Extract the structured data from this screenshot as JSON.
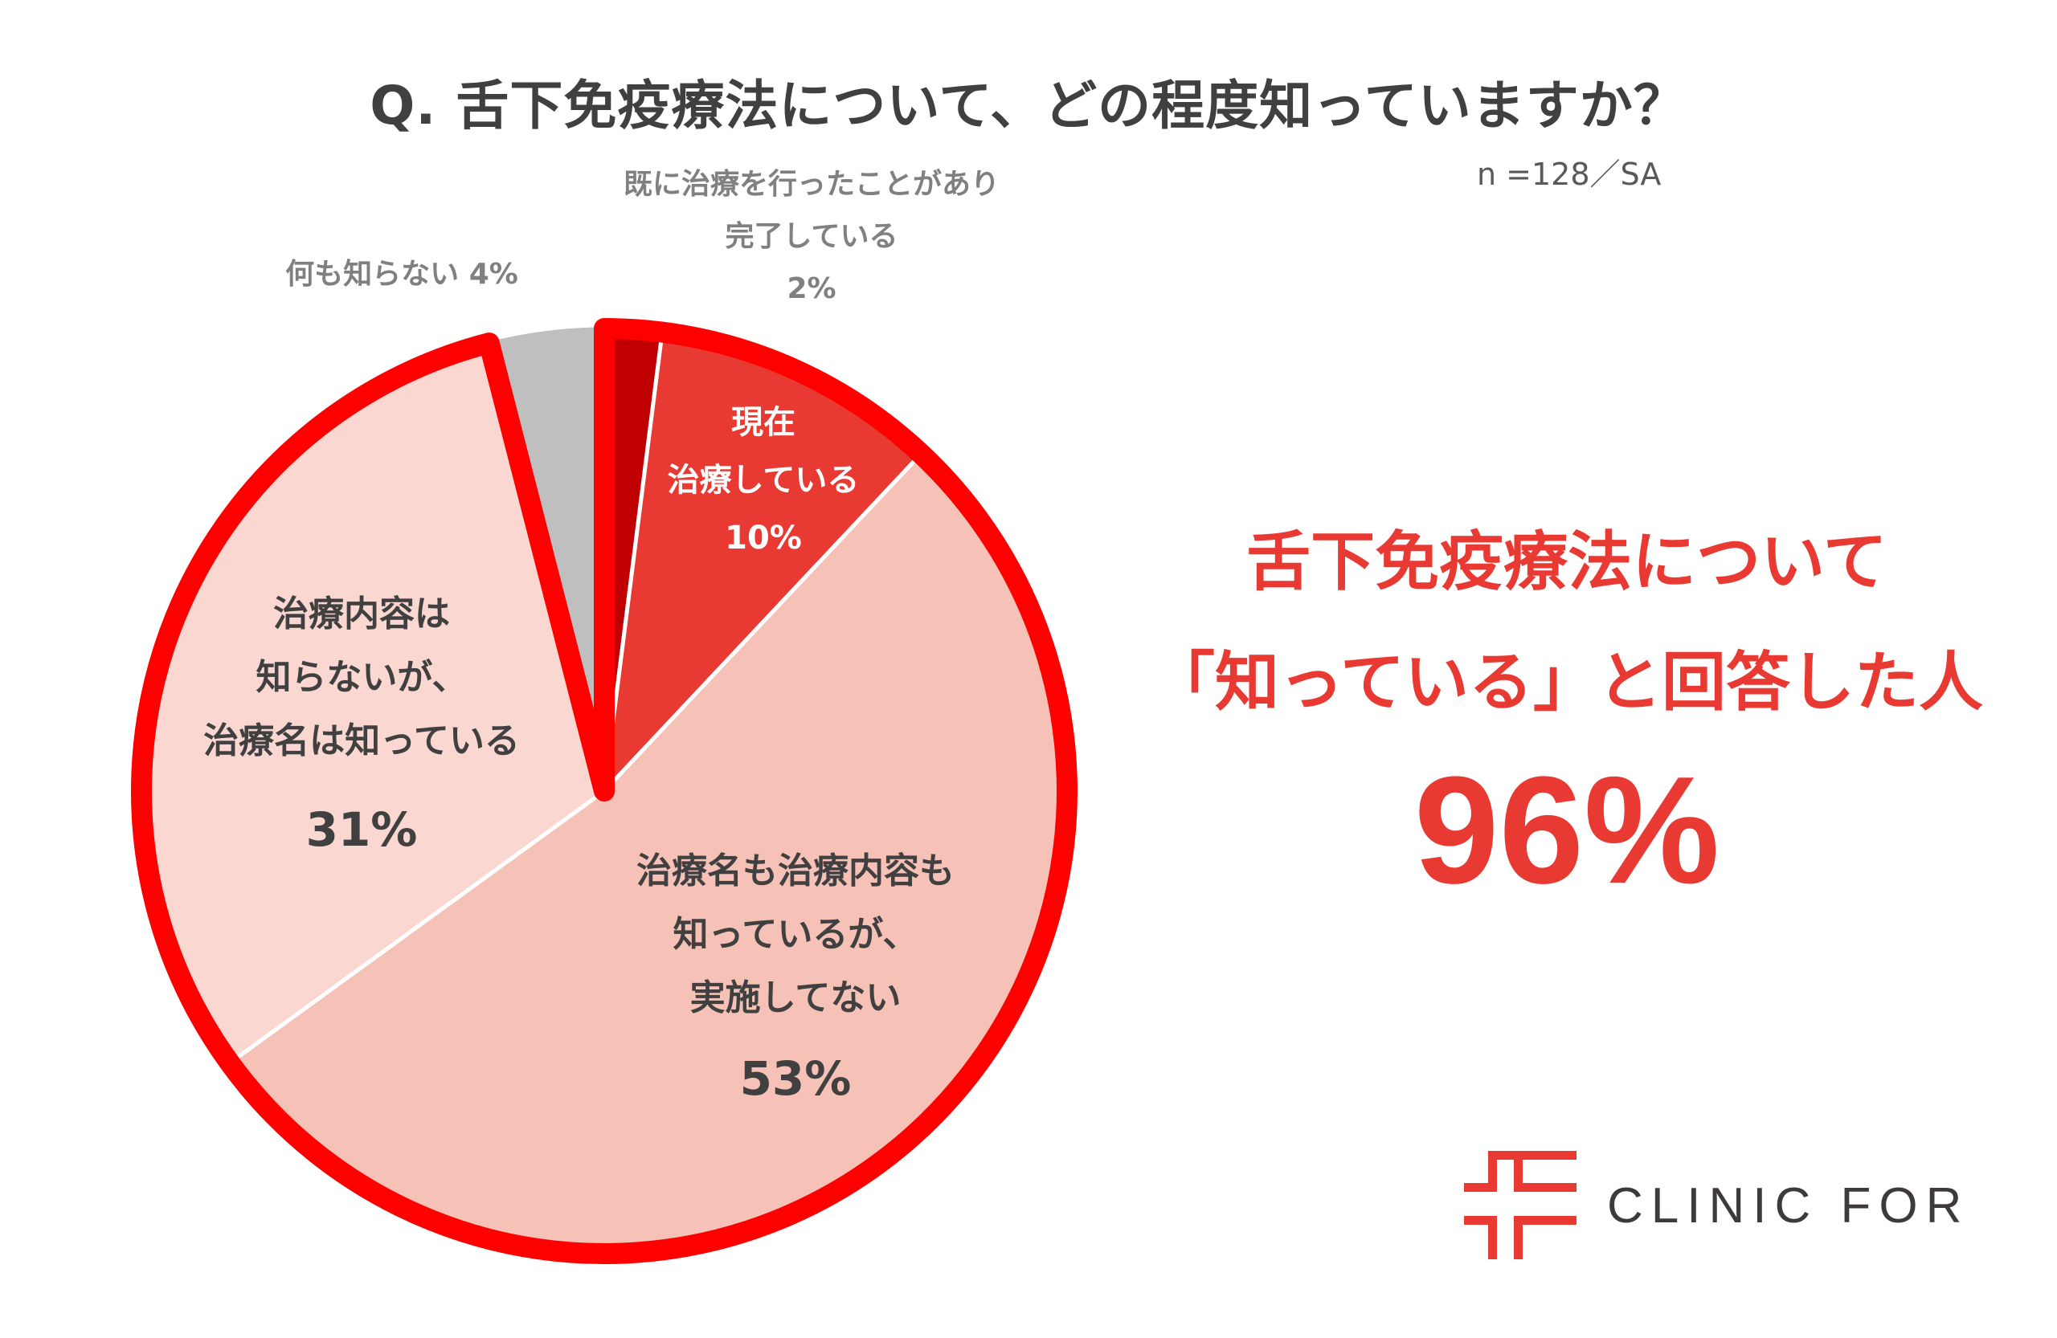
{
  "title": "Q. 舌下免疫療法について、どの程度知っていますか？",
  "sample_note": "n =128／SA",
  "labels": {
    "completed": {
      "line1": "既に治療を行ったことがあり",
      "line2": "完了している",
      "pct": "2%"
    },
    "current": {
      "line1": "現在",
      "line2": "治療している",
      "pct": "10%"
    },
    "known_not_done": {
      "line1": "治療名も治療内容も",
      "line2": "知っているが、",
      "line3": "実施してない",
      "pct": "53%"
    },
    "name_only": {
      "line1": "治療内容は",
      "line2": "知らないが、",
      "line3": "治療名は知っている",
      "pct": "31%"
    },
    "none": {
      "text": "何も知らない 4%"
    }
  },
  "headline": {
    "line1": "舌下免疫療法について",
    "line2": "「知っている」と回答した人",
    "value": "96%"
  },
  "brand": {
    "name": "CLINIC FOR",
    "color": "#e83a32"
  },
  "colors": {
    "completed": "#c00000",
    "current": "#e83a32",
    "known_not_done": "#f6c1b6",
    "name_only": "#fad7d1",
    "none": "#bfbfbf",
    "highlight_outline": "#ff0000"
  },
  "chart_data": {
    "type": "pie",
    "title": "Q. 舌下免疫療法について、どの程度知っていますか？",
    "subtitle": "n =128／SA",
    "start_angle": "12 o'clock, clockwise",
    "categories": [
      "既に治療を行ったことがあり完了している",
      "現在治療している",
      "治療名も治療内容も知っているが、実施してない",
      "治療内容は知らないが、治療名は知っている",
      "何も知らない"
    ],
    "values": [
      2,
      10,
      53,
      31,
      4
    ],
    "unit": "%",
    "colors": [
      "#c00000",
      "#e83a32",
      "#f6c1b6",
      "#fad7d1",
      "#bfbfbf"
    ],
    "highlight": {
      "categories_included": [
        0,
        1,
        2,
        3
      ],
      "total": 96,
      "label": "「知っている」と回答した人 96%",
      "outline_color": "#ff0000"
    },
    "legend": "none (data labels on slices)"
  }
}
